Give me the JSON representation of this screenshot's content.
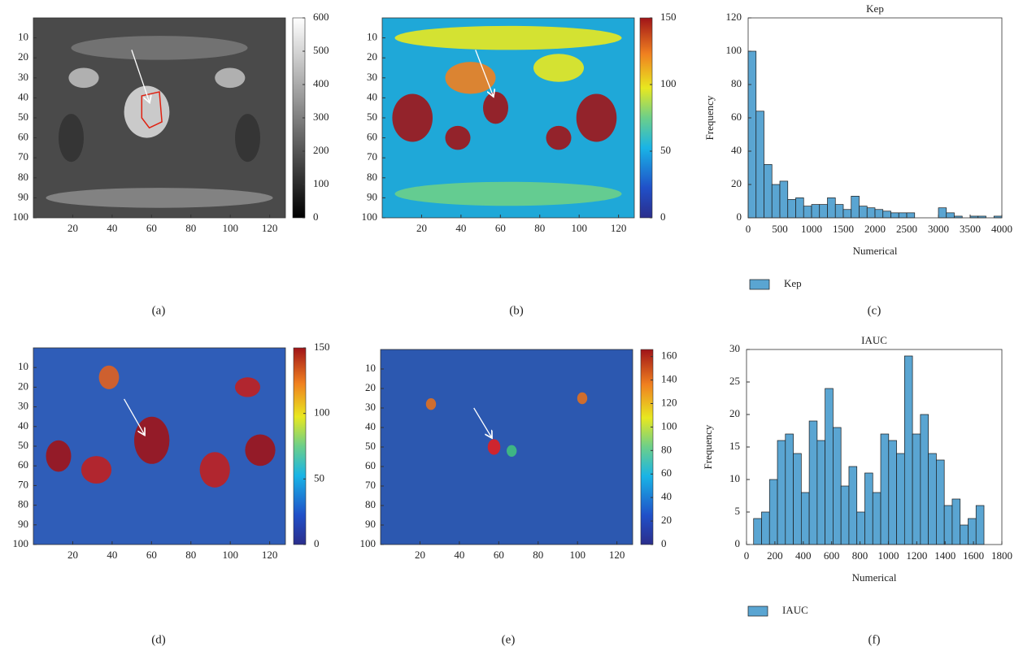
{
  "chart_data": [
    {
      "type": "image",
      "label": "(a)",
      "xlim": [
        0,
        128
      ],
      "ylim": [
        0,
        100
      ],
      "xticks": [
        20,
        40,
        60,
        80,
        100,
        120
      ],
      "yticks": [
        10,
        20,
        30,
        40,
        50,
        60,
        70,
        80,
        90,
        100
      ],
      "colorbar": {
        "colormap": "gray",
        "lim": [
          0,
          600
        ],
        "ticks": [
          0,
          100,
          200,
          300,
          400,
          500,
          600
        ]
      }
    },
    {
      "type": "image",
      "label": "(b)",
      "xlim": [
        0,
        128
      ],
      "ylim": [
        0,
        100
      ],
      "xticks": [
        20,
        40,
        60,
        80,
        100,
        120
      ],
      "yticks": [
        10,
        20,
        30,
        40,
        50,
        60,
        70,
        80,
        90,
        100
      ],
      "colorbar": {
        "colormap": "jet",
        "lim": [
          0,
          150
        ],
        "ticks": [
          0,
          50,
          100,
          150
        ]
      }
    },
    {
      "type": "histogram",
      "label": "(c)",
      "title": "Kep",
      "xlabel": "Numerical",
      "ylabel": "Frequency",
      "series": [
        {
          "name": "Kep",
          "color": "#5aa5d2",
          "bins": [
            0,
            125,
            250,
            375,
            500,
            625,
            750,
            875,
            1000,
            1125,
            1250,
            1375,
            1500,
            1625,
            1750,
            1875,
            2000,
            2125,
            2250,
            2375,
            2500,
            2625,
            2750,
            2875,
            3000,
            3125,
            3250,
            3375,
            3500,
            3625,
            3750,
            3875,
            4000
          ],
          "values": [
            100,
            64,
            32,
            20,
            22,
            11,
            12,
            7,
            8,
            8,
            12,
            8,
            5,
            13,
            7,
            6,
            5,
            4,
            3,
            3,
            3,
            0,
            0,
            0,
            6,
            3,
            1,
            0,
            1,
            1,
            0,
            1
          ]
        }
      ],
      "xlim": [
        0,
        4000
      ],
      "ylim": [
        0,
        120
      ],
      "xticks": [
        0,
        500,
        1000,
        1500,
        2000,
        2500,
        3000,
        3500,
        4000
      ],
      "yticks": [
        0,
        20,
        40,
        60,
        80,
        100,
        120
      ]
    },
    {
      "type": "image",
      "label": "(d)",
      "xlim": [
        0,
        128
      ],
      "ylim": [
        0,
        100
      ],
      "xticks": [
        20,
        40,
        60,
        80,
        100,
        120
      ],
      "yticks": [
        10,
        20,
        30,
        40,
        50,
        60,
        70,
        80,
        90,
        100
      ],
      "colorbar": {
        "colormap": "jet",
        "lim": [
          0,
          150
        ],
        "ticks": [
          0,
          50,
          100,
          150
        ]
      }
    },
    {
      "type": "image",
      "label": "(e)",
      "xlim": [
        0,
        128
      ],
      "ylim": [
        0,
        100
      ],
      "xticks": [
        20,
        40,
        60,
        80,
        100,
        120
      ],
      "yticks": [
        10,
        20,
        30,
        40,
        50,
        60,
        70,
        80,
        90,
        100
      ],
      "colorbar": {
        "colormap": "jet",
        "lim": [
          0,
          166
        ],
        "ticks": [
          0,
          20,
          40,
          60,
          80,
          100,
          120,
          140,
          160
        ]
      }
    },
    {
      "type": "histogram",
      "label": "(f)",
      "title": "IAUC",
      "xlabel": "Numerical",
      "ylabel": "Frequency",
      "series": [
        {
          "name": "IAUC",
          "color": "#5aa5d2",
          "bins": [
            50,
            106,
            162,
            218,
            274,
            330,
            386,
            442,
            498,
            554,
            610,
            666,
            722,
            778,
            834,
            890,
            946,
            1002,
            1058,
            1114,
            1170,
            1226,
            1282,
            1338,
            1394,
            1450,
            1506,
            1562,
            1618,
            1674
          ],
          "values": [
            4,
            5,
            10,
            16,
            17,
            14,
            8,
            19,
            16,
            24,
            18,
            9,
            12,
            5,
            11,
            8,
            17,
            16,
            14,
            29,
            17,
            20,
            14,
            13,
            6,
            7,
            3,
            4,
            6
          ]
        }
      ],
      "xlim": [
        0,
        1800
      ],
      "ylim": [
        0,
        30
      ],
      "xticks": [
        0,
        200,
        400,
        600,
        800,
        1000,
        1200,
        1400,
        1600,
        1800
      ],
      "yticks": [
        0,
        5,
        10,
        15,
        20,
        25,
        30
      ]
    }
  ]
}
